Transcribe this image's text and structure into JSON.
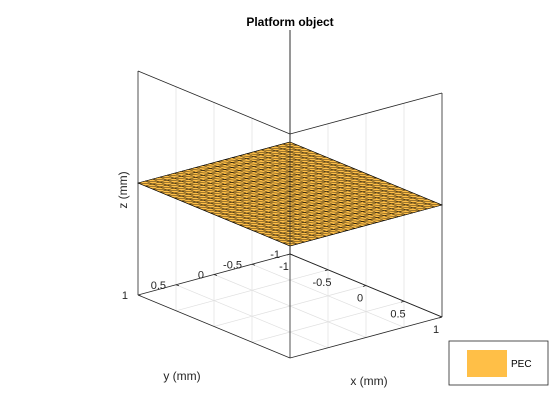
{
  "chart_data": {
    "type": "surface-3d",
    "title": "Platform object",
    "xlabel": "x (mm)",
    "ylabel": "y (mm)",
    "zlabel": "z (mm)",
    "xlim": [
      -1,
      1
    ],
    "ylim": [
      -1,
      1
    ],
    "zlim": [
      -1,
      1
    ],
    "x_ticks": [
      -1,
      -0.5,
      0,
      0.5,
      1
    ],
    "y_ticks": [
      -1,
      -0.5,
      0,
      0.5,
      1
    ],
    "x_tick_labels": [
      "-1",
      "-0.5",
      "0",
      "0.5",
      "1"
    ],
    "y_tick_labels": [
      "-1",
      "-0.5",
      "0",
      "0.5",
      "1"
    ],
    "grid": true,
    "surface": {
      "x_range": [
        -1,
        1
      ],
      "y_range": [
        -1,
        1
      ],
      "z": 0,
      "mesh": "triangular",
      "color": "#ffbf47",
      "edge_color": "#000000"
    },
    "legend": {
      "position": "bottom-right",
      "entries": [
        {
          "label": "PEC",
          "color": "#ffbf47"
        }
      ]
    }
  }
}
